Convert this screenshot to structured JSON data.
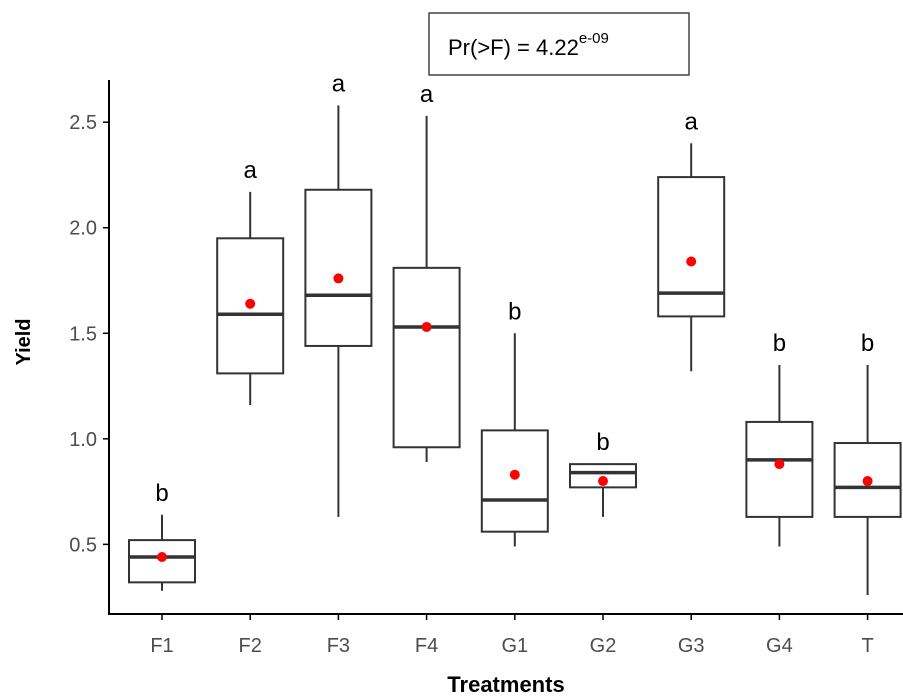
{
  "chart_data": {
    "type": "box",
    "xlabel": "Treatments",
    "ylabel": "Yield",
    "ylim": [
      0.17,
      2.7
    ],
    "yticks": [
      0.5,
      1.0,
      1.5,
      2.0,
      2.5
    ],
    "ytick_labels": [
      "0.5",
      "1.0",
      "1.5",
      "2.0",
      "2.5"
    ],
    "grid": false,
    "annotation": {
      "prefix": "Pr(>F) = 4.22",
      "superscript": "e-09"
    },
    "categories": [
      "F1",
      "F2",
      "F3",
      "F4",
      "G1",
      "G2",
      "G3",
      "G4",
      "T"
    ],
    "boxes": [
      {
        "label": "F1",
        "whisker_low": 0.28,
        "q1": 0.32,
        "median": 0.44,
        "q3": 0.52,
        "whisker_high": 0.64,
        "mean": 0.44,
        "letter": "b"
      },
      {
        "label": "F2",
        "whisker_low": 1.16,
        "q1": 1.31,
        "median": 1.59,
        "q3": 1.95,
        "whisker_high": 2.17,
        "mean": 1.64,
        "letter": "a"
      },
      {
        "label": "F3",
        "whisker_low": 0.63,
        "q1": 1.44,
        "median": 1.68,
        "q3": 2.18,
        "whisker_high": 2.58,
        "mean": 1.76,
        "letter": "a"
      },
      {
        "label": "F4",
        "whisker_low": 0.89,
        "q1": 0.96,
        "median": 1.53,
        "q3": 1.81,
        "whisker_high": 2.53,
        "mean": 1.53,
        "letter": "a"
      },
      {
        "label": "G1",
        "whisker_low": 0.49,
        "q1": 0.56,
        "median": 0.71,
        "q3": 1.04,
        "whisker_high": 1.5,
        "mean": 0.83,
        "letter": "b"
      },
      {
        "label": "G2",
        "whisker_low": 0.63,
        "q1": 0.77,
        "median": 0.84,
        "q3": 0.88,
        "whisker_high": 0.88,
        "mean": 0.8,
        "letter": "b"
      },
      {
        "label": "G3",
        "whisker_low": 1.32,
        "q1": 1.58,
        "median": 1.69,
        "q3": 2.24,
        "whisker_high": 2.4,
        "mean": 1.84,
        "letter": "a"
      },
      {
        "label": "G4",
        "whisker_low": 0.49,
        "q1": 0.63,
        "median": 0.9,
        "q3": 1.08,
        "whisker_high": 1.35,
        "mean": 0.88,
        "letter": "b"
      },
      {
        "label": "T",
        "whisker_low": 0.26,
        "q1": 0.63,
        "median": 0.77,
        "q3": 0.98,
        "whisker_high": 1.35,
        "mean": 0.8,
        "letter": "b"
      }
    ],
    "colors": {
      "box_stroke": "#333333",
      "mean_point": "#ff0000",
      "axis": "#000000",
      "tick_label": "#4d4d4d"
    }
  }
}
